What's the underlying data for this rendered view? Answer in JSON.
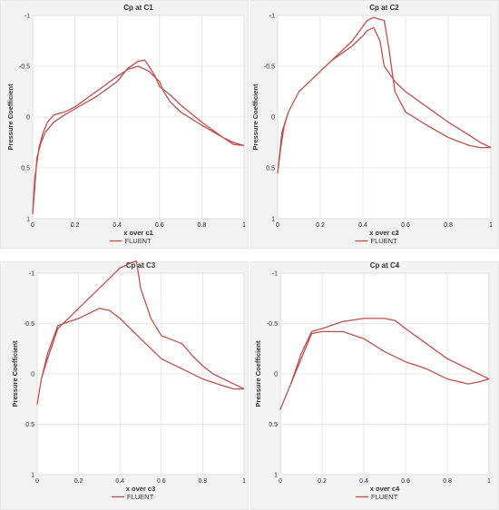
{
  "chart_data": [
    {
      "type": "line",
      "title": "Cp at C1",
      "xlabel": "x over c1",
      "ylabel": "Pressure Coefficient",
      "xlim": [
        0,
        1
      ],
      "ylim": [
        1,
        -1
      ],
      "y_inverted": true,
      "xticks": [
        0,
        0.2,
        0.4,
        0.6,
        0.8,
        1
      ],
      "xtick_labels": [
        "0",
        "0.2",
        "0.4",
        "0.6",
        "0.8",
        "1"
      ],
      "yticks": [
        -1,
        -0.5,
        0,
        0.5,
        1
      ],
      "ytick_labels": [
        "-1",
        "-0.5",
        "0",
        "0.5",
        "1"
      ],
      "grid": true,
      "legend": "bottom-center",
      "series": [
        {
          "name": "FLUENT",
          "color": "#c0504d",
          "x": [
            1.0,
            0.95,
            0.9,
            0.8,
            0.7,
            0.65,
            0.62,
            0.6,
            0.55,
            0.5,
            0.45,
            0.4,
            0.3,
            0.2,
            0.15,
            0.1,
            0.07,
            0.05,
            0.03,
            0.02,
            0.01,
            0.0,
            0.01,
            0.02,
            0.04,
            0.06,
            0.1,
            0.15,
            0.2,
            0.3,
            0.4,
            0.45,
            0.5,
            0.53,
            0.55,
            0.58,
            0.6,
            0.65,
            0.7,
            0.8,
            0.9,
            0.95,
            1.0
          ],
          "y": [
            0.28,
            0.25,
            0.2,
            0.08,
            -0.05,
            -0.15,
            -0.25,
            -0.35,
            -0.45,
            -0.5,
            -0.47,
            -0.4,
            -0.25,
            -0.1,
            -0.05,
            -0.02,
            0.05,
            0.15,
            0.3,
            0.45,
            0.6,
            0.95,
            0.7,
            0.4,
            0.25,
            0.15,
            0.05,
            -0.02,
            -0.08,
            -0.2,
            -0.35,
            -0.48,
            -0.55,
            -0.56,
            -0.5,
            -0.4,
            -0.3,
            -0.22,
            -0.12,
            0.05,
            0.2,
            0.27,
            0.28
          ]
        }
      ]
    },
    {
      "type": "line",
      "title": "Cp at C2",
      "xlabel": "x over c2",
      "ylabel": "Pressure Coefficient",
      "xlim": [
        0,
        1
      ],
      "ylim": [
        1,
        -1
      ],
      "y_inverted": true,
      "xticks": [
        0,
        0.2,
        0.4,
        0.6,
        0.8,
        1
      ],
      "xtick_labels": [
        "0",
        "0.2",
        "0.4",
        "0.6",
        "0.8",
        "1"
      ],
      "yticks": [
        -1,
        -0.5,
        0,
        0.5,
        1
      ],
      "ytick_labels": [
        "-1",
        "-0.5",
        "0",
        "0.5",
        "1"
      ],
      "grid": true,
      "legend": "bottom-center",
      "series": [
        {
          "name": "FLUENT",
          "color": "#c0504d",
          "x": [
            1.0,
            0.95,
            0.9,
            0.8,
            0.7,
            0.6,
            0.55,
            0.52,
            0.5,
            0.45,
            0.42,
            0.35,
            0.25,
            0.2,
            0.15,
            0.1,
            0.05,
            0.03,
            0.015,
            0.0,
            0.01,
            0.02,
            0.05,
            0.1,
            0.15,
            0.2,
            0.25,
            0.35,
            0.4,
            0.42,
            0.45,
            0.48,
            0.5,
            0.55,
            0.6,
            0.7,
            0.8,
            0.9,
            0.95,
            1.0
          ],
          "y": [
            0.3,
            0.3,
            0.28,
            0.2,
            0.08,
            -0.05,
            -0.25,
            -0.7,
            -0.95,
            -0.98,
            -0.95,
            -0.75,
            -0.55,
            -0.45,
            -0.35,
            -0.25,
            -0.05,
            0.1,
            0.3,
            0.55,
            0.35,
            0.15,
            -0.05,
            -0.25,
            -0.35,
            -0.45,
            -0.55,
            -0.7,
            -0.8,
            -0.85,
            -0.88,
            -0.75,
            -0.5,
            -0.35,
            -0.25,
            -0.1,
            0.05,
            0.18,
            0.25,
            0.3
          ]
        }
      ]
    },
    {
      "type": "line",
      "title": "Cp at C3",
      "xlabel": "x over c3",
      "ylabel": "Pressure Coefficient",
      "xlim": [
        0,
        1
      ],
      "ylim": [
        1,
        -1
      ],
      "y_inverted": true,
      "xticks": [
        0,
        0.2,
        0.4,
        0.6,
        0.8,
        1
      ],
      "xtick_labels": [
        "0",
        "0.2",
        "0.4",
        "0.6",
        "0.8",
        "1"
      ],
      "yticks": [
        -1,
        -0.5,
        0,
        0.5,
        1
      ],
      "ytick_labels": [
        "-1",
        "-0.5",
        "0",
        "0.5",
        "1"
      ],
      "grid": true,
      "legend": "bottom-center",
      "series": [
        {
          "name": "FLUENT",
          "color": "#c0504d",
          "x": [
            1.0,
            0.95,
            0.9,
            0.8,
            0.7,
            0.6,
            0.5,
            0.4,
            0.35,
            0.3,
            0.2,
            0.1,
            0.05,
            0.02,
            0.0,
            0.02,
            0.05,
            0.1,
            0.2,
            0.3,
            0.4,
            0.45,
            0.48,
            0.5,
            0.55,
            0.6,
            0.7,
            0.75,
            0.8,
            0.85,
            0.9,
            0.95,
            1.0
          ],
          "y": [
            0.15,
            0.15,
            0.12,
            0.05,
            -0.05,
            -0.15,
            -0.35,
            -0.55,
            -0.63,
            -0.65,
            -0.55,
            -0.48,
            -0.2,
            0.05,
            0.3,
            0.05,
            -0.15,
            -0.45,
            -0.65,
            -0.85,
            -1.05,
            -1.1,
            -1.12,
            -0.85,
            -0.55,
            -0.38,
            -0.3,
            -0.18,
            -0.08,
            0.0,
            0.05,
            0.1,
            0.15
          ]
        }
      ]
    },
    {
      "type": "line",
      "title": "Cp at C4",
      "xlabel": "x over c4",
      "ylabel": "Pressure Coefficient",
      "xlim": [
        0,
        1
      ],
      "ylim": [
        1,
        -1
      ],
      "y_inverted": true,
      "xticks": [
        0,
        0.2,
        0.4,
        0.6,
        0.8,
        1
      ],
      "xtick_labels": [
        "0",
        "0.2",
        "0.4",
        "0.6",
        "0.8",
        "1"
      ],
      "yticks": [
        -1,
        -0.5,
        0,
        0.5,
        1
      ],
      "ytick_labels": [
        "-1",
        "-0.5",
        "0",
        "0.5",
        "1"
      ],
      "grid": true,
      "legend": "bottom-center",
      "series": [
        {
          "name": "FLUENT",
          "color": "#c0504d",
          "x": [
            1.0,
            0.95,
            0.9,
            0.8,
            0.7,
            0.6,
            0.5,
            0.4,
            0.3,
            0.2,
            0.15,
            0.1,
            0.05,
            0.0,
            0.05,
            0.1,
            0.15,
            0.2,
            0.3,
            0.4,
            0.5,
            0.55,
            0.6,
            0.7,
            0.8,
            0.9,
            0.95,
            1.0
          ],
          "y": [
            0.05,
            0.08,
            0.1,
            0.05,
            -0.05,
            -0.12,
            -0.22,
            -0.35,
            -0.42,
            -0.42,
            -0.4,
            -0.15,
            0.1,
            0.35,
            0.1,
            -0.2,
            -0.42,
            -0.45,
            -0.52,
            -0.55,
            -0.55,
            -0.53,
            -0.45,
            -0.3,
            -0.15,
            -0.05,
            0.0,
            0.05
          ]
        }
      ]
    }
  ]
}
